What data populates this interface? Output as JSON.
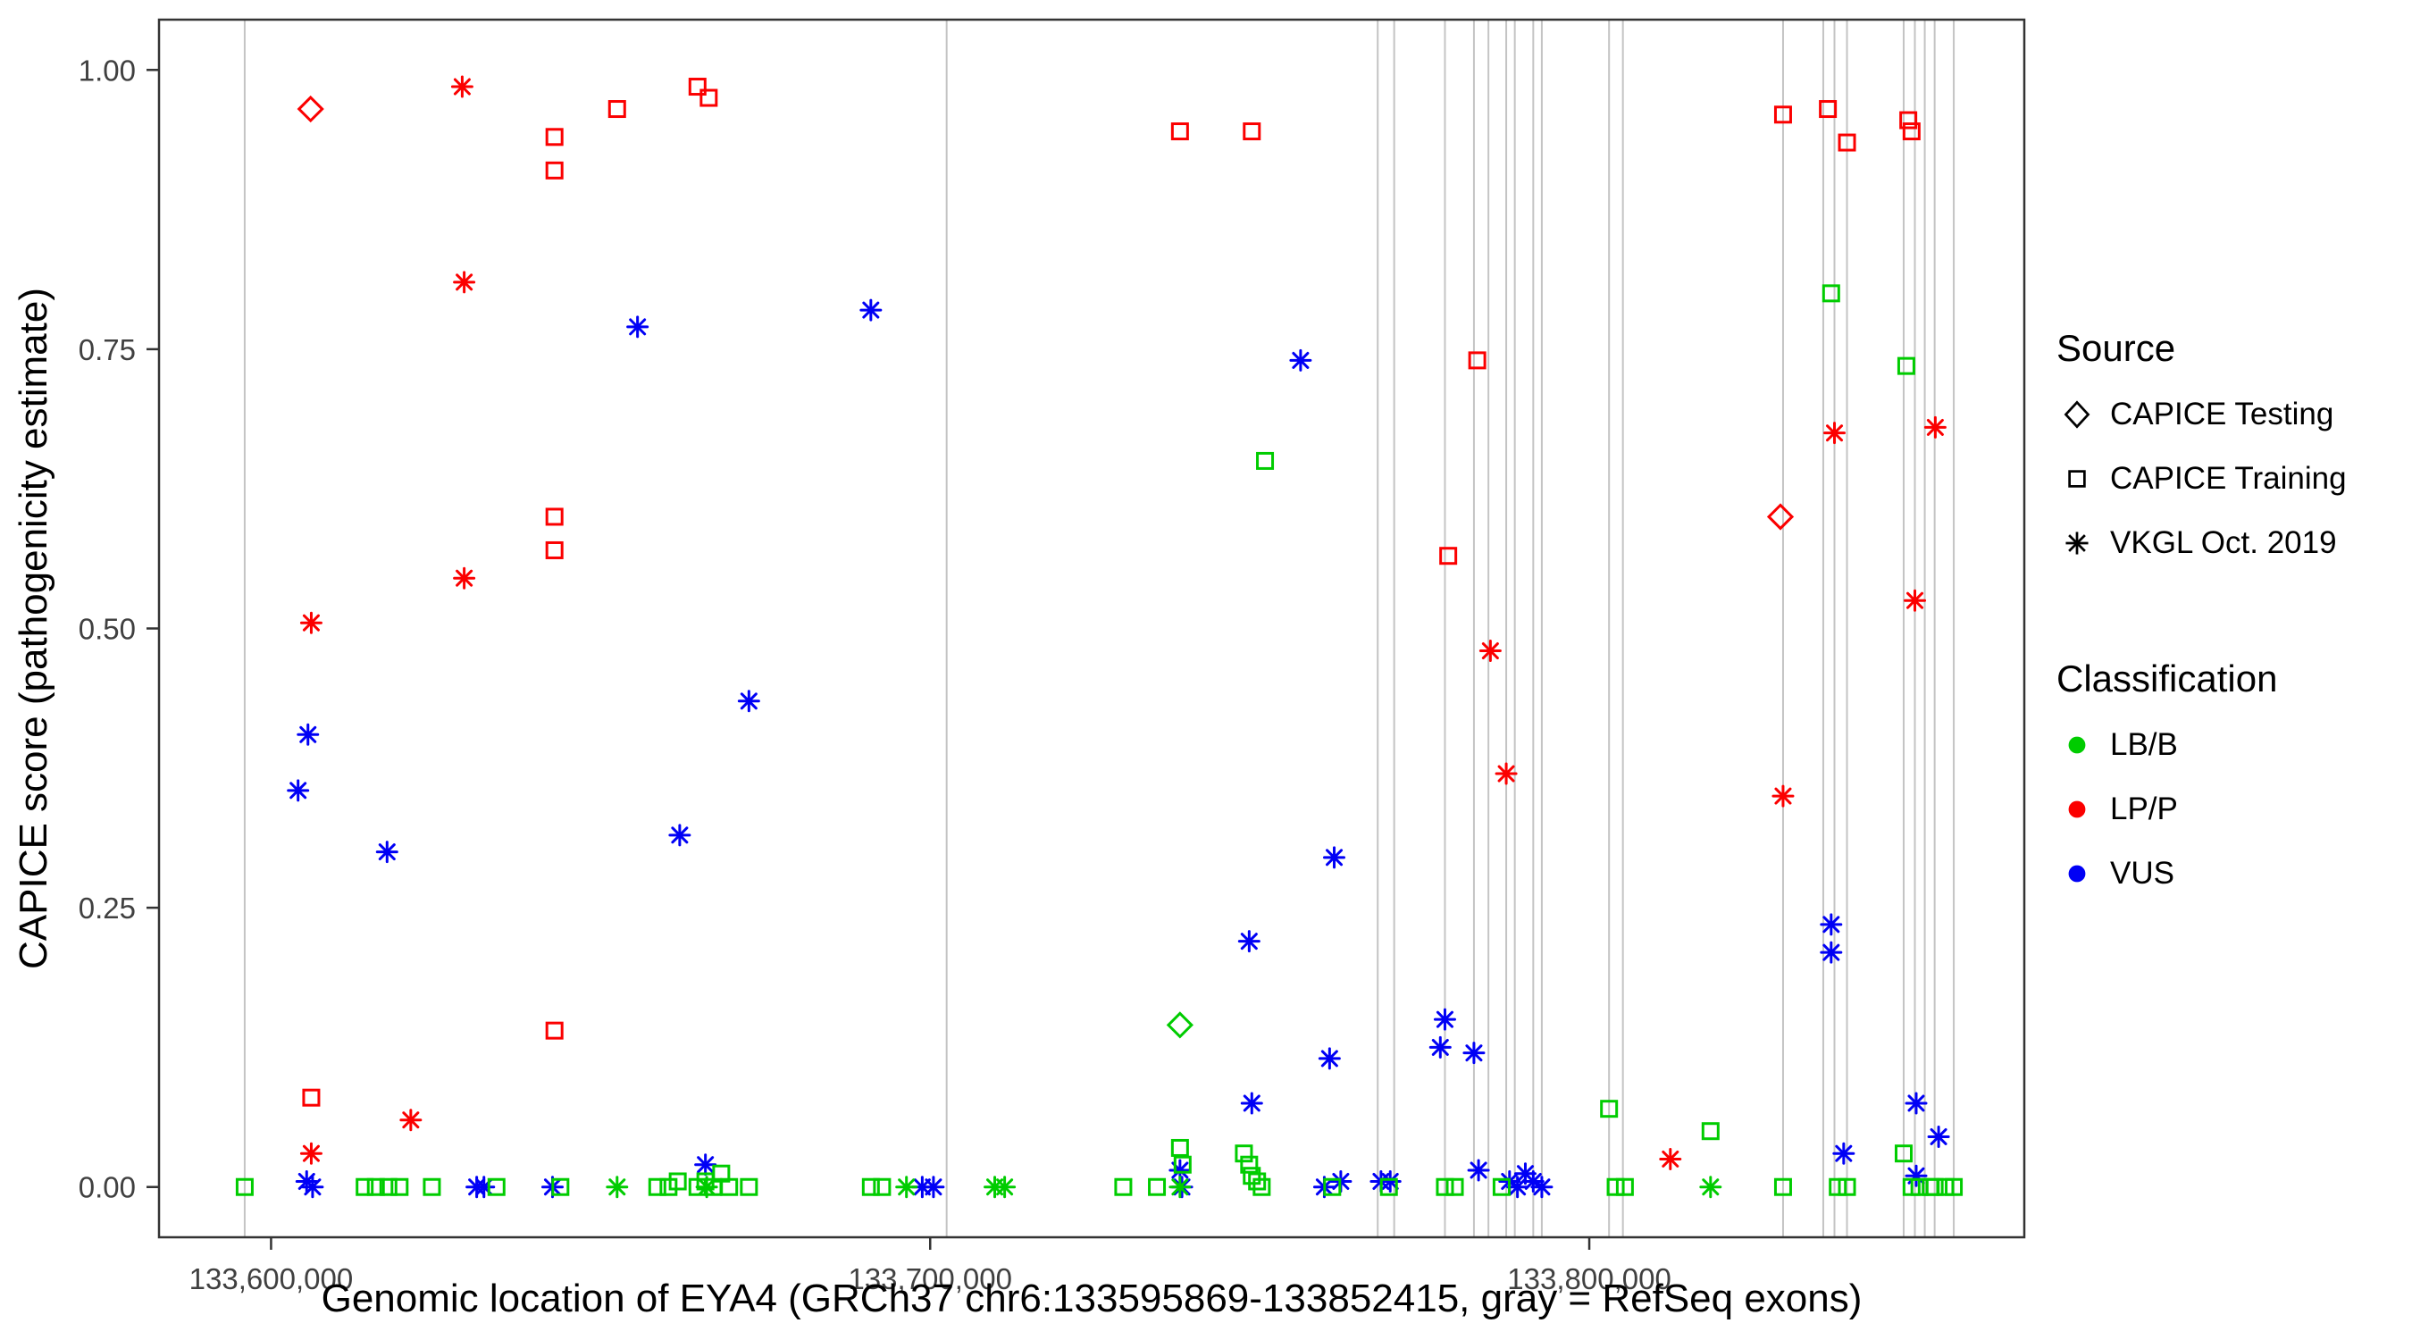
{
  "figure": {
    "x_axis_label": "Genomic location of EYA4 (GRCh37 chr6:133595869-133852415, gray = RefSeq exons)",
    "y_axis_label": "CAPICE score (pathogenicity estimate)"
  },
  "legend": {
    "source": {
      "title": "Source",
      "items": [
        {
          "label": "CAPICE Testing",
          "shape": "diamond"
        },
        {
          "label": "CAPICE Training",
          "shape": "square"
        },
        {
          "label": "VKGL Oct. 2019",
          "shape": "asterisk"
        }
      ]
    },
    "classification": {
      "title": "Classification",
      "items": [
        {
          "label": "LB/B",
          "color": "#00cc00"
        },
        {
          "label": "LP/P",
          "color": "#fb0000"
        },
        {
          "label": "VUS",
          "color": "#0000f5"
        }
      ]
    }
  },
  "chart_data": {
    "type": "scatter",
    "title": "",
    "xlabel": "Genomic location of EYA4 (GRCh37 chr6:133595869-133852415, gray = RefSeq exons)",
    "ylabel": "CAPICE score (pathogenicity estimate)",
    "xlim": [
      133583000,
      133866000
    ],
    "ylim": [
      -0.045,
      1.045
    ],
    "x_ticks": [
      {
        "value": 133600000,
        "label": "133,600,000"
      },
      {
        "value": 133700000,
        "label": "133,700,000"
      },
      {
        "value": 133800000,
        "label": "133,800,000"
      }
    ],
    "y_ticks": [
      {
        "value": 0.0,
        "label": "0.00"
      },
      {
        "value": 0.25,
        "label": "0.25"
      },
      {
        "value": 0.5,
        "label": "0.50"
      },
      {
        "value": 0.75,
        "label": "0.75"
      },
      {
        "value": 1.0,
        "label": "1.00"
      }
    ],
    "grid": false,
    "legend_position": "right",
    "exon_color": "#c4c4c4",
    "exon_positions": [
      133596000,
      133702500,
      133767900,
      133770400,
      133778100,
      133782500,
      133784700,
      133787400,
      133788700,
      133791500,
      133792800,
      133803000,
      133805100,
      133829400,
      133835500,
      133837200,
      133839100,
      133847700,
      133849400,
      133850900,
      133852400,
      133855300
    ],
    "shape_by_source": {
      "testing": "diamond",
      "training": "square",
      "vkgl": "asterisk"
    },
    "source_labels": {
      "testing": "CAPICE Testing",
      "training": "CAPICE Training",
      "vkgl": "VKGL Oct. 2019"
    },
    "color_by_class": {
      "LB/B": "#00cc00",
      "LP/P": "#fb0000",
      "VUS": "#0000f5"
    },
    "points": [
      [
        133606000,
        0.965,
        "testing",
        "LP/P"
      ],
      [
        133829000,
        0.6,
        "testing",
        "LP/P"
      ],
      [
        133737900,
        0.145,
        "testing",
        "LB/B"
      ],
      [
        133606100,
        0.08,
        "training",
        "LP/P"
      ],
      [
        133643000,
        0.94,
        "training",
        "LP/P"
      ],
      [
        133643000,
        0.91,
        "training",
        "LP/P"
      ],
      [
        133643000,
        0.6,
        "training",
        "LP/P"
      ],
      [
        133643000,
        0.57,
        "training",
        "LP/P"
      ],
      [
        133643000,
        0.14,
        "training",
        "LP/P"
      ],
      [
        133652500,
        0.965,
        "training",
        "LP/P"
      ],
      [
        133664700,
        0.985,
        "training",
        "LP/P"
      ],
      [
        133666400,
        0.975,
        "training",
        "LP/P"
      ],
      [
        133737900,
        0.945,
        "training",
        "LP/P"
      ],
      [
        133748800,
        0.945,
        "training",
        "LP/P"
      ],
      [
        133778600,
        0.565,
        "training",
        "LP/P"
      ],
      [
        133783000,
        0.74,
        "training",
        "LP/P"
      ],
      [
        133829400,
        0.96,
        "training",
        "LP/P"
      ],
      [
        133836200,
        0.965,
        "training",
        "LP/P"
      ],
      [
        133839100,
        0.935,
        "training",
        "LP/P"
      ],
      [
        133848400,
        0.955,
        "training",
        "LP/P"
      ],
      [
        133848900,
        0.945,
        "training",
        "LP/P"
      ],
      [
        133606100,
        0.505,
        "vkgl",
        "LP/P"
      ],
      [
        133606100,
        0.03,
        "vkgl",
        "LP/P"
      ],
      [
        133621200,
        0.06,
        "vkgl",
        "LP/P"
      ],
      [
        133629000,
        0.985,
        "vkgl",
        "LP/P"
      ],
      [
        133629300,
        0.81,
        "vkgl",
        "LP/P"
      ],
      [
        133629300,
        0.545,
        "vkgl",
        "LP/P"
      ],
      [
        133785000,
        0.48,
        "vkgl",
        "LP/P"
      ],
      [
        133787400,
        0.37,
        "vkgl",
        "LP/P"
      ],
      [
        133812300,
        0.025,
        "vkgl",
        "LP/P"
      ],
      [
        133829400,
        0.35,
        "vkgl",
        "LP/P"
      ],
      [
        133837200,
        0.675,
        "vkgl",
        "LP/P"
      ],
      [
        133849400,
        0.525,
        "vkgl",
        "LP/P"
      ],
      [
        133852500,
        0.68,
        "vkgl",
        "LP/P"
      ],
      [
        133604100,
        0.355,
        "vkgl",
        "VUS"
      ],
      [
        133605600,
        0.405,
        "vkgl",
        "VUS"
      ],
      [
        133605400,
        0.005,
        "vkgl",
        "VUS"
      ],
      [
        133606300,
        0.0,
        "vkgl",
        "VUS"
      ],
      [
        133617600,
        0.3,
        "vkgl",
        "VUS"
      ],
      [
        133631200,
        0.0,
        "vkgl",
        "VUS"
      ],
      [
        133632300,
        0.0,
        "vkgl",
        "VUS"
      ],
      [
        133642700,
        0.0,
        "vkgl",
        "VUS"
      ],
      [
        133655600,
        0.77,
        "vkgl",
        "VUS"
      ],
      [
        133662000,
        0.315,
        "vkgl",
        "VUS"
      ],
      [
        133665900,
        0.02,
        "vkgl",
        "VUS"
      ],
      [
        133672500,
        0.435,
        "vkgl",
        "VUS"
      ],
      [
        133691000,
        0.785,
        "vkgl",
        "VUS"
      ],
      [
        133698800,
        0.0,
        "vkgl",
        "VUS"
      ],
      [
        133700500,
        0.0,
        "vkgl",
        "VUS"
      ],
      [
        133737900,
        0.015,
        "vkgl",
        "VUS"
      ],
      [
        133738200,
        0.0,
        "vkgl",
        "VUS"
      ],
      [
        133748400,
        0.22,
        "vkgl",
        "VUS"
      ],
      [
        133748800,
        0.075,
        "vkgl",
        "VUS"
      ],
      [
        133756200,
        0.74,
        "vkgl",
        "VUS"
      ],
      [
        133759800,
        0.0,
        "vkgl",
        "VUS"
      ],
      [
        133760600,
        0.115,
        "vkgl",
        "VUS"
      ],
      [
        133761300,
        0.295,
        "vkgl",
        "VUS"
      ],
      [
        133762300,
        0.005,
        "vkgl",
        "VUS"
      ],
      [
        133768400,
        0.005,
        "vkgl",
        "VUS"
      ],
      [
        133769800,
        0.005,
        "vkgl",
        "VUS"
      ],
      [
        133777400,
        0.125,
        "vkgl",
        "VUS"
      ],
      [
        133778100,
        0.15,
        "vkgl",
        "VUS"
      ],
      [
        133782500,
        0.12,
        "vkgl",
        "VUS"
      ],
      [
        133783200,
        0.015,
        "vkgl",
        "VUS"
      ],
      [
        133787900,
        0.005,
        "vkgl",
        "VUS"
      ],
      [
        133789100,
        0.0,
        "vkgl",
        "VUS"
      ],
      [
        133790300,
        0.012,
        "vkgl",
        "VUS"
      ],
      [
        133791500,
        0.005,
        "vkgl",
        "VUS"
      ],
      [
        133792800,
        0.0,
        "vkgl",
        "VUS"
      ],
      [
        133836700,
        0.235,
        "vkgl",
        "VUS"
      ],
      [
        133836700,
        0.21,
        "vkgl",
        "VUS"
      ],
      [
        133838600,
        0.03,
        "vkgl",
        "VUS"
      ],
      [
        133849600,
        0.075,
        "vkgl",
        "VUS"
      ],
      [
        133849600,
        0.01,
        "vkgl",
        "VUS"
      ],
      [
        133853000,
        0.045,
        "vkgl",
        "VUS"
      ],
      [
        133596000,
        0.0,
        "training",
        "LB/B"
      ],
      [
        133614200,
        0.0,
        "training",
        "LB/B"
      ],
      [
        133615900,
        0.0,
        "training",
        "LB/B"
      ],
      [
        133617800,
        0.0,
        "training",
        "LB/B"
      ],
      [
        133619500,
        0.0,
        "training",
        "LB/B"
      ],
      [
        133624400,
        0.0,
        "training",
        "LB/B"
      ],
      [
        133634200,
        0.0,
        "training",
        "LB/B"
      ],
      [
        133643900,
        0.0,
        "training",
        "LB/B"
      ],
      [
        133658600,
        0.0,
        "training",
        "LB/B"
      ],
      [
        133660300,
        0.0,
        "training",
        "LB/B"
      ],
      [
        133661700,
        0.005,
        "training",
        "LB/B"
      ],
      [
        133664700,
        0.0,
        "training",
        "LB/B"
      ],
      [
        133665900,
        0.005,
        "training",
        "LB/B"
      ],
      [
        133667100,
        0.0,
        "training",
        "LB/B"
      ],
      [
        133668300,
        0.012,
        "training",
        "LB/B"
      ],
      [
        133669500,
        0.0,
        "training",
        "LB/B"
      ],
      [
        133672500,
        0.0,
        "training",
        "LB/B"
      ],
      [
        133691000,
        0.0,
        "training",
        "LB/B"
      ],
      [
        133692700,
        0.0,
        "training",
        "LB/B"
      ],
      [
        133729300,
        0.0,
        "training",
        "LB/B"
      ],
      [
        133734400,
        0.0,
        "training",
        "LB/B"
      ],
      [
        133737900,
        0.035,
        "training",
        "LB/B"
      ],
      [
        133738300,
        0.02,
        "training",
        "LB/B"
      ],
      [
        133747600,
        0.03,
        "training",
        "LB/B"
      ],
      [
        133748400,
        0.02,
        "training",
        "LB/B"
      ],
      [
        133748800,
        0.01,
        "training",
        "LB/B"
      ],
      [
        133749600,
        0.005,
        "training",
        "LB/B"
      ],
      [
        133750300,
        0.0,
        "training",
        "LB/B"
      ],
      [
        133750800,
        0.65,
        "training",
        "LB/B"
      ],
      [
        133761000,
        0.0,
        "training",
        "LB/B"
      ],
      [
        133769600,
        0.0,
        "training",
        "LB/B"
      ],
      [
        133778100,
        0.0,
        "training",
        "LB/B"
      ],
      [
        133779600,
        0.0,
        "training",
        "LB/B"
      ],
      [
        133786700,
        0.0,
        "training",
        "LB/B"
      ],
      [
        133803000,
        0.07,
        "training",
        "LB/B"
      ],
      [
        133804000,
        0.0,
        "training",
        "LB/B"
      ],
      [
        133805400,
        0.0,
        "training",
        "LB/B"
      ],
      [
        133818400,
        0.05,
        "training",
        "LB/B"
      ],
      [
        133829400,
        0.0,
        "training",
        "LB/B"
      ],
      [
        133836700,
        0.8,
        "training",
        "LB/B"
      ],
      [
        133837700,
        0.0,
        "training",
        "LB/B"
      ],
      [
        133839100,
        0.0,
        "training",
        "LB/B"
      ],
      [
        133847700,
        0.03,
        "training",
        "LB/B"
      ],
      [
        133848100,
        0.735,
        "training",
        "LB/B"
      ],
      [
        133848900,
        0.0,
        "training",
        "LB/B"
      ],
      [
        133850100,
        0.0,
        "training",
        "LB/B"
      ],
      [
        133851800,
        0.0,
        "training",
        "LB/B"
      ],
      [
        133852400,
        0.0,
        "training",
        "LB/B"
      ],
      [
        133854000,
        0.0,
        "training",
        "LB/B"
      ],
      [
        133855300,
        0.0,
        "training",
        "LB/B"
      ],
      [
        133652500,
        0.0,
        "vkgl",
        "LB/B"
      ],
      [
        133666100,
        0.0,
        "vkgl",
        "LB/B"
      ],
      [
        133696400,
        0.0,
        "vkgl",
        "LB/B"
      ],
      [
        133709800,
        0.0,
        "vkgl",
        "LB/B"
      ],
      [
        133711300,
        0.0,
        "vkgl",
        "LB/B"
      ],
      [
        133737900,
        0.0,
        "vkgl",
        "LB/B"
      ],
      [
        133818400,
        0.0,
        "vkgl",
        "LB/B"
      ]
    ]
  }
}
